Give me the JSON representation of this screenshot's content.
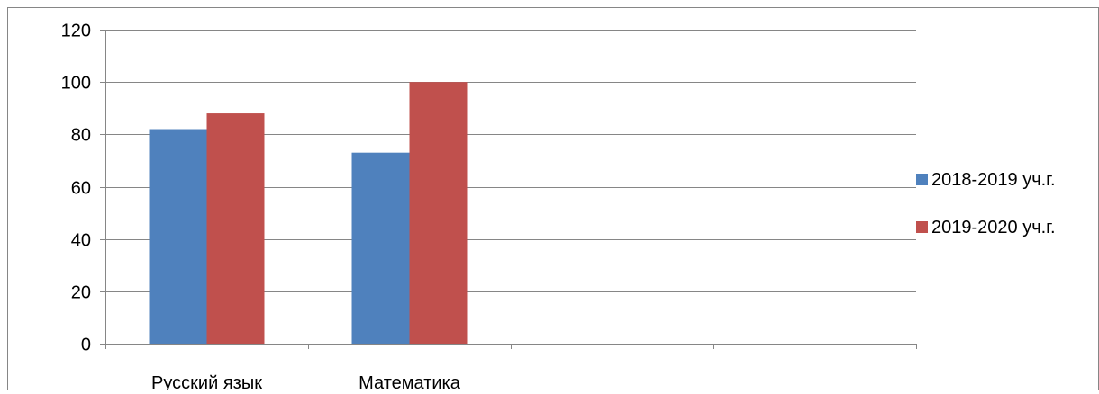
{
  "chart_data": {
    "type": "bar",
    "categories": [
      "Русский язык",
      "Математика",
      "",
      ""
    ],
    "series": [
      {
        "name": "2018-2019 уч.г.",
        "values": [
          82,
          73,
          null,
          null
        ],
        "color": "#4F81BD"
      },
      {
        "name": "2019-2020 уч.г.",
        "values": [
          88,
          100,
          null,
          null
        ],
        "color": "#C0504D"
      }
    ],
    "ylim": [
      0,
      120
    ],
    "yticks": [
      0,
      20,
      40,
      60,
      80,
      100,
      120
    ],
    "grid": true,
    "legend_position": "right"
  }
}
